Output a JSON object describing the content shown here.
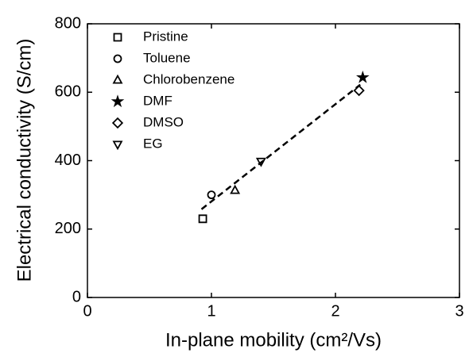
{
  "chart_data": {
    "type": "scatter",
    "x_label": "In-plane mobility (cm²/Vs)",
    "y_label": "Electrical conductivity (S/cm)",
    "xlim": [
      0,
      3
    ],
    "xticks": [
      0,
      1,
      2,
      3
    ],
    "ylim": [
      0,
      800
    ],
    "yticks": [
      0,
      200,
      400,
      600,
      800
    ],
    "legend": "upper-left",
    "series": [
      {
        "name": "Pristine",
        "marker": "square",
        "color": "#000000",
        "x": [
          0.93
        ],
        "values": [
          230
        ]
      },
      {
        "name": "Toluene",
        "marker": "circle",
        "color": "#000000",
        "x": [
          1.0
        ],
        "values": [
          300
        ]
      },
      {
        "name": "Chlorobenzene",
        "marker": "triangle-up",
        "color": "#000000",
        "x": [
          1.19
        ],
        "values": [
          313
        ]
      },
      {
        "name": "DMF",
        "marker": "star",
        "color": "#000000",
        "x": [
          2.22
        ],
        "values": [
          643
        ]
      },
      {
        "name": "DMSO",
        "marker": "diamond",
        "color": "#000000",
        "x": [
          2.19
        ],
        "values": [
          605
        ]
      },
      {
        "name": "EG",
        "marker": "triangle-down",
        "color": "#000000",
        "x": [
          1.4
        ],
        "values": [
          398
        ]
      }
    ],
    "fit_line": {
      "style": "dashed",
      "color": "#000000",
      "x": [
        0.92,
        2.2
      ],
      "y": [
        258,
        622
      ]
    }
  }
}
